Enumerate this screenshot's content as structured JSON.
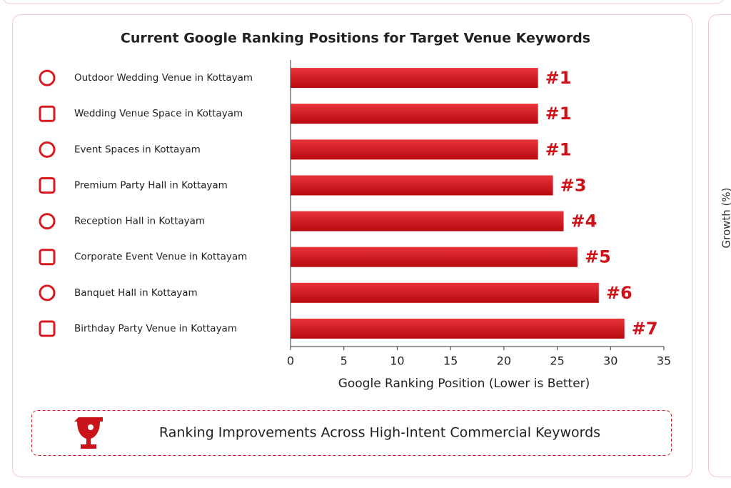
{
  "chart_data": {
    "type": "hbar",
    "title": "Current Google Ranking Positions for Target Venue Keywords",
    "categories": [
      "Outdoor Wedding Venue in Kottayam",
      "Wedding Venue Space in Kottayam",
      "Event Spaces in Kottayam",
      "Premium Party Hall in Kottayam",
      "Reception Hall in Kottayam",
      "Corporate Event Venue in Kottayam",
      "Banquet Hall in Kottayam",
      "Birthday Party Venue in Kottayam"
    ],
    "values": [
      23.2,
      23.2,
      23.2,
      24.6,
      25.6,
      26.9,
      28.9,
      31.3
    ],
    "rank_labels": [
      "#1",
      "#1",
      "#1",
      "#3",
      "#4",
      "#5",
      "#6",
      "#7"
    ],
    "color": "#d81b1f",
    "xlim": [
      0,
      35
    ],
    "xticks": [
      0,
      5,
      10,
      15,
      20,
      25,
      30,
      35
    ],
    "xlabel": "Google Ranking Position (Lower is Better)",
    "banner": "Ranking Improvements Across High-Intent Commercial Keywords",
    "side_axis_label": "Growth (%)"
  }
}
